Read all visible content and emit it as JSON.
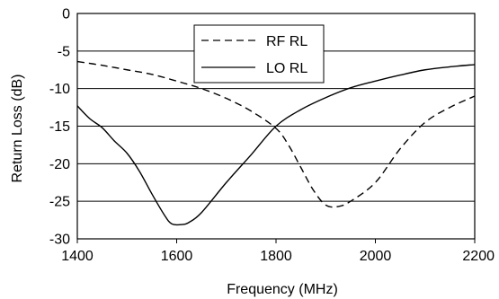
{
  "chart_data": {
    "type": "line",
    "title": "",
    "xlabel": "Frequency (MHz)",
    "ylabel": "Return Loss (dB)",
    "xlim": [
      1400,
      2200
    ],
    "ylim": [
      -30,
      0
    ],
    "x_ticks": [
      "1400",
      "1600",
      "1800",
      "2000",
      "2200"
    ],
    "y_ticks": [
      "0",
      "-5",
      "-10",
      "-15",
      "-20",
      "-25",
      "-30"
    ],
    "grid": "horizontal",
    "legend_position": "top-center",
    "series": [
      {
        "name": "RF RL",
        "style": "dashed",
        "color": "#000000",
        "x": [
          1400,
          1450,
          1500,
          1550,
          1600,
          1650,
          1700,
          1750,
          1800,
          1825,
          1850,
          1875,
          1900,
          1925,
          1950,
          2000,
          2050,
          2100,
          2150,
          2200
        ],
        "y": [
          -6.4,
          -6.9,
          -7.5,
          -8.1,
          -9.0,
          -10.0,
          -11.3,
          -13.0,
          -15.3,
          -17.5,
          -20.5,
          -23.5,
          -25.5,
          -25.7,
          -25.0,
          -22.5,
          -18.0,
          -14.5,
          -12.5,
          -11.0
        ]
      },
      {
        "name": "LO RL",
        "style": "solid",
        "color": "#000000",
        "x": [
          1400,
          1425,
          1450,
          1475,
          1500,
          1525,
          1550,
          1575,
          1590,
          1610,
          1625,
          1650,
          1700,
          1750,
          1800,
          1850,
          1900,
          1950,
          2000,
          2050,
          2100,
          2150,
          2200
        ],
        "y": [
          -12.3,
          -14.0,
          -15.2,
          -17.0,
          -18.6,
          -21.0,
          -24.0,
          -26.8,
          -28.0,
          -28.1,
          -27.8,
          -26.5,
          -22.5,
          -18.8,
          -15.0,
          -12.8,
          -11.2,
          -9.9,
          -9.0,
          -8.2,
          -7.5,
          -7.1,
          -6.8
        ]
      }
    ]
  }
}
